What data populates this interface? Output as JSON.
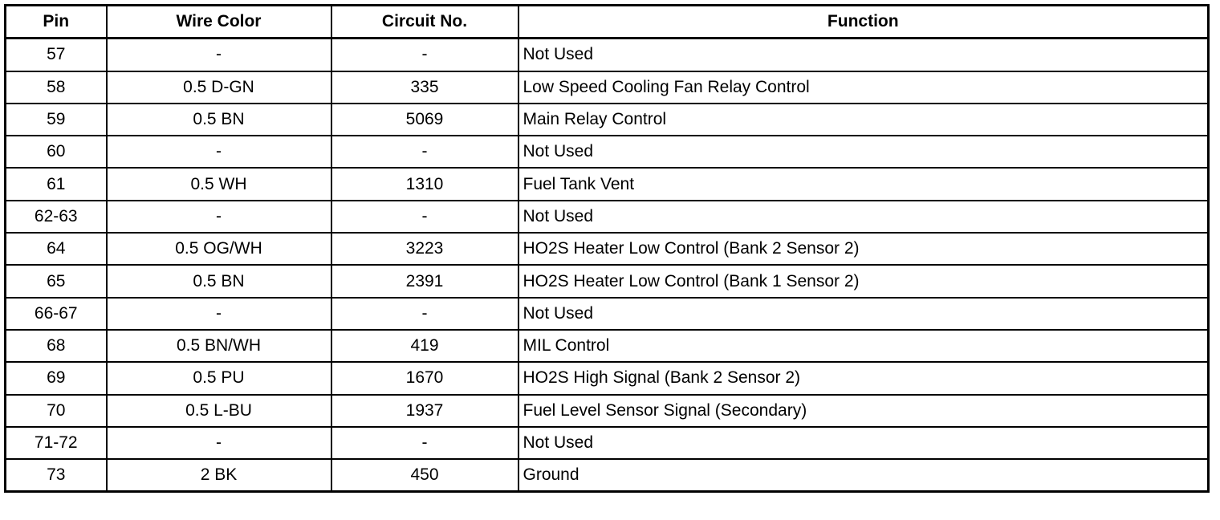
{
  "headers": [
    "Pin",
    "Wire Color",
    "Circuit No.",
    "Function"
  ],
  "rows": [
    [
      "57",
      "-",
      "-",
      "Not Used"
    ],
    [
      "58",
      "0.5 D-GN",
      "335",
      "Low Speed Cooling Fan Relay Control"
    ],
    [
      "59",
      "0.5 BN",
      "5069",
      "Main Relay Control"
    ],
    [
      "60",
      "-",
      "-",
      "Not Used"
    ],
    [
      "61",
      "0.5 WH",
      "1310",
      "Fuel Tank Vent"
    ],
    [
      "62-63",
      "-",
      "-",
      "Not Used"
    ],
    [
      "64",
      "0.5 OG/WH",
      "3223",
      "HO2S Heater Low Control (Bank 2 Sensor 2)"
    ],
    [
      "65",
      "0.5 BN",
      "2391",
      "HO2S Heater Low Control (Bank 1 Sensor 2)"
    ],
    [
      "66-67",
      "-",
      "-",
      "Not Used"
    ],
    [
      "68",
      "0.5 BN/WH",
      "419",
      "MIL Control"
    ],
    [
      "69",
      "0.5 PU",
      "1670",
      "HO2S High Signal (Bank 2 Sensor 2)"
    ],
    [
      "70",
      "0.5 L-BU",
      "1937",
      "Fuel Level Sensor Signal (Secondary)"
    ],
    [
      "71-72",
      "-",
      "-",
      "Not Used"
    ],
    [
      "73",
      "2 BK",
      "450",
      "Ground"
    ]
  ]
}
